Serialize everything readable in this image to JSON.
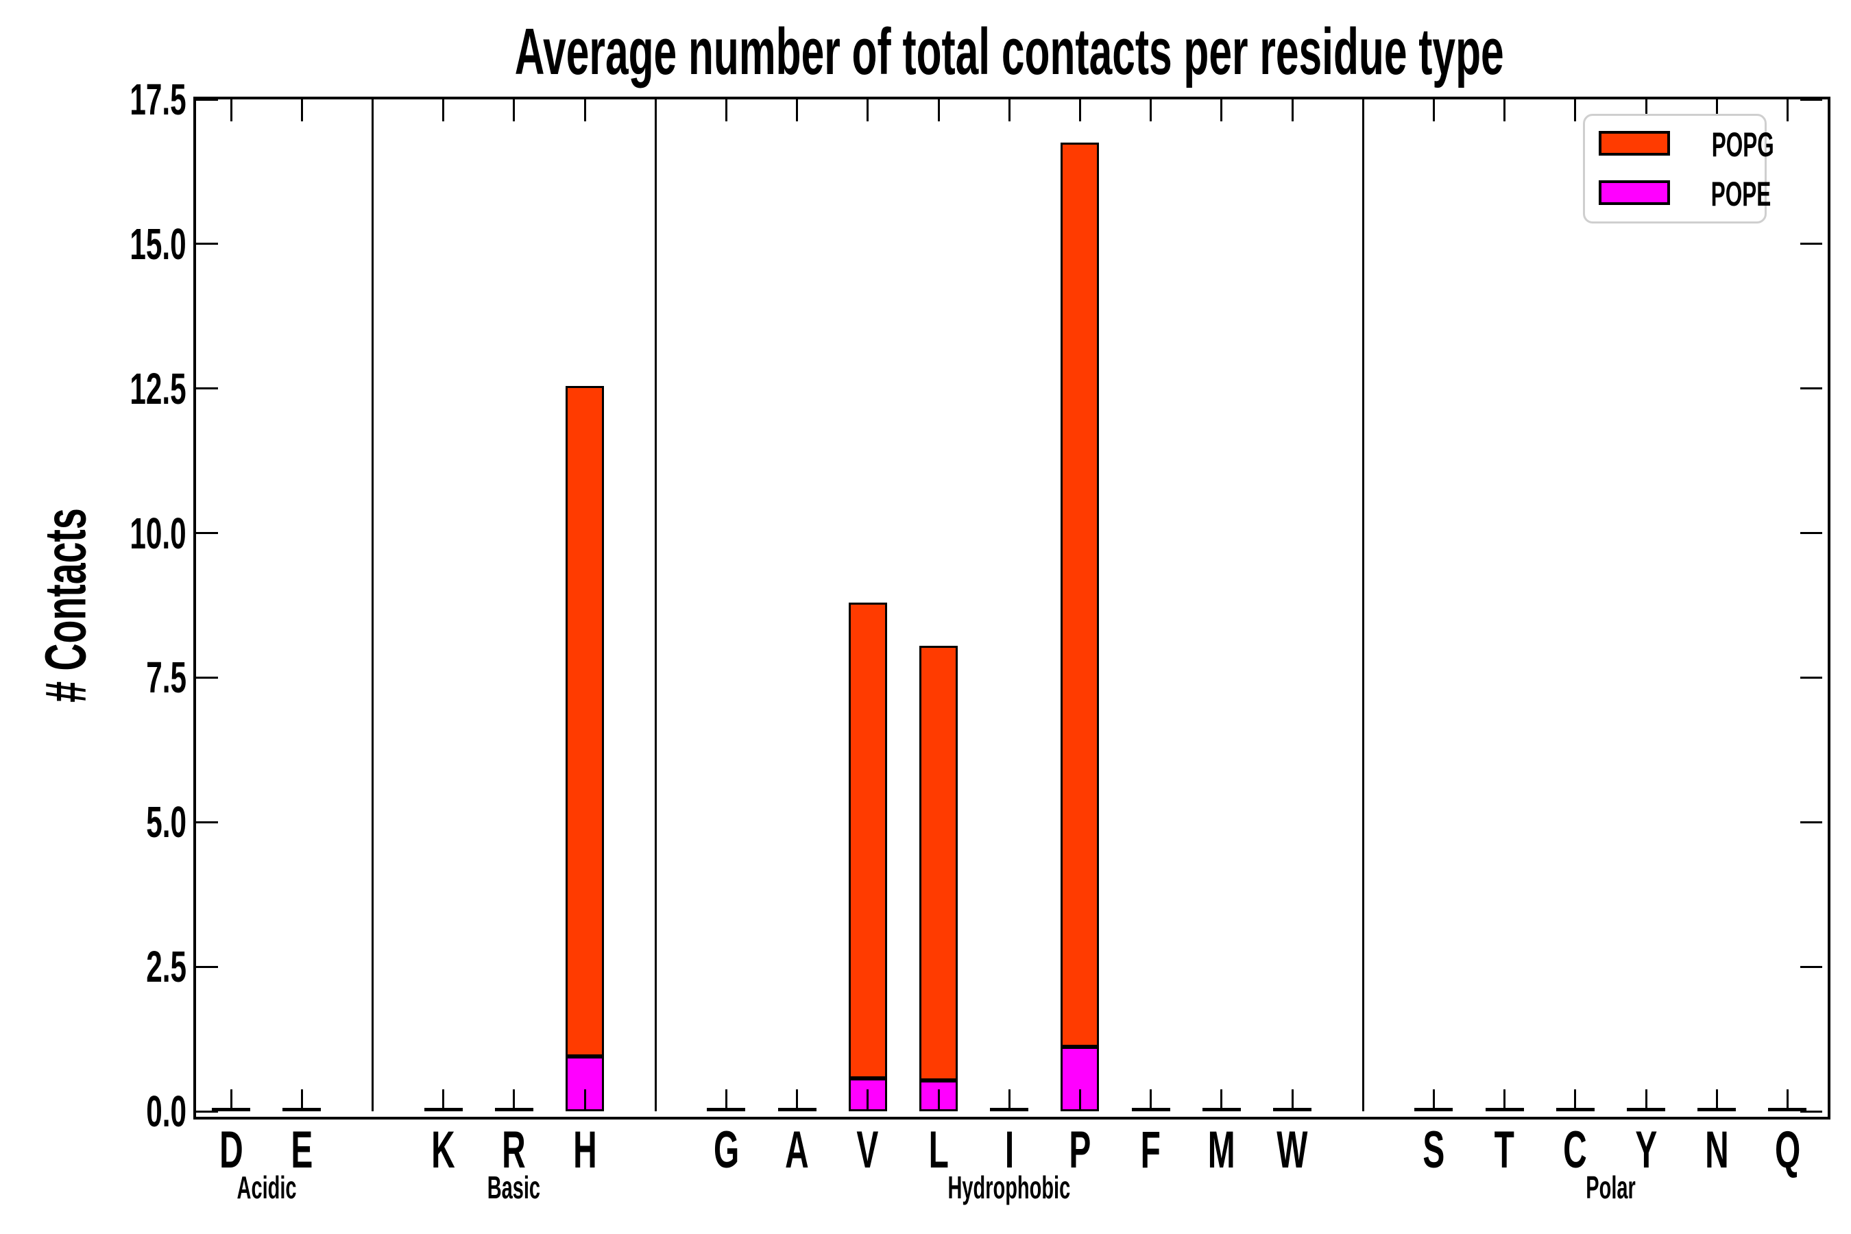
{
  "figure": {
    "title": "Average number of total contacts per residue type",
    "ylabel": "# Contacts"
  },
  "legend": {
    "position": "upper right",
    "entries": [
      {
        "label": "POPG",
        "color": "#FF3B00"
      },
      {
        "label": "POPE",
        "color": "#FF00FF"
      }
    ]
  },
  "chart_data": {
    "type": "bar",
    "stacked": true,
    "title": "Average number of total contacts per residue type",
    "xlabel": "",
    "ylabel": "# Contacts",
    "ylim": [
      0,
      17.5
    ],
    "ytick_step": 2.5,
    "ytick_labels": [
      "0.0",
      "2.5",
      "5.0",
      "7.5",
      "10.0",
      "12.5",
      "15.0",
      "17.5"
    ],
    "grid": false,
    "legend_position": "upper right",
    "bar_edge_color": "#000000",
    "categories": [
      "D",
      "E",
      "K",
      "R",
      "H",
      "G",
      "A",
      "V",
      "L",
      "I",
      "P",
      "F",
      "M",
      "W",
      "S",
      "T",
      "C",
      "Y",
      "N",
      "Q"
    ],
    "groups": [
      {
        "label": "Acidic",
        "members": [
          "D",
          "E"
        ]
      },
      {
        "label": "Basic",
        "members": [
          "K",
          "R",
          "H"
        ]
      },
      {
        "label": "Hydrophobic",
        "members": [
          "G",
          "A",
          "V",
          "L",
          "I",
          "P",
          "F",
          "M",
          "W"
        ]
      },
      {
        "label": "Polar",
        "members": [
          "S",
          "T",
          "C",
          "Y",
          "N",
          "Q"
        ]
      }
    ],
    "series": [
      {
        "name": "POPE",
        "color": "#FF00FF",
        "values": [
          0.01,
          0.01,
          0.01,
          0.01,
          0.95,
          0.01,
          0.01,
          0.57,
          0.53,
          0.01,
          1.11,
          0.01,
          0.01,
          0.01,
          0.01,
          0.01,
          0.01,
          0.01,
          0.01,
          0.01
        ]
      },
      {
        "name": "POPG",
        "color": "#FF3B00",
        "values": [
          0.02,
          0.02,
          0.02,
          0.02,
          11.6,
          0.02,
          0.02,
          8.23,
          7.52,
          0.02,
          15.64,
          0.02,
          0.02,
          0.02,
          0.02,
          0.02,
          0.02,
          0.02,
          0.02,
          0.02
        ]
      }
    ],
    "totals_note": "stacked totals: H=12.55, V=8.80, L=8.05, P=16.75, all others ~0.03"
  }
}
